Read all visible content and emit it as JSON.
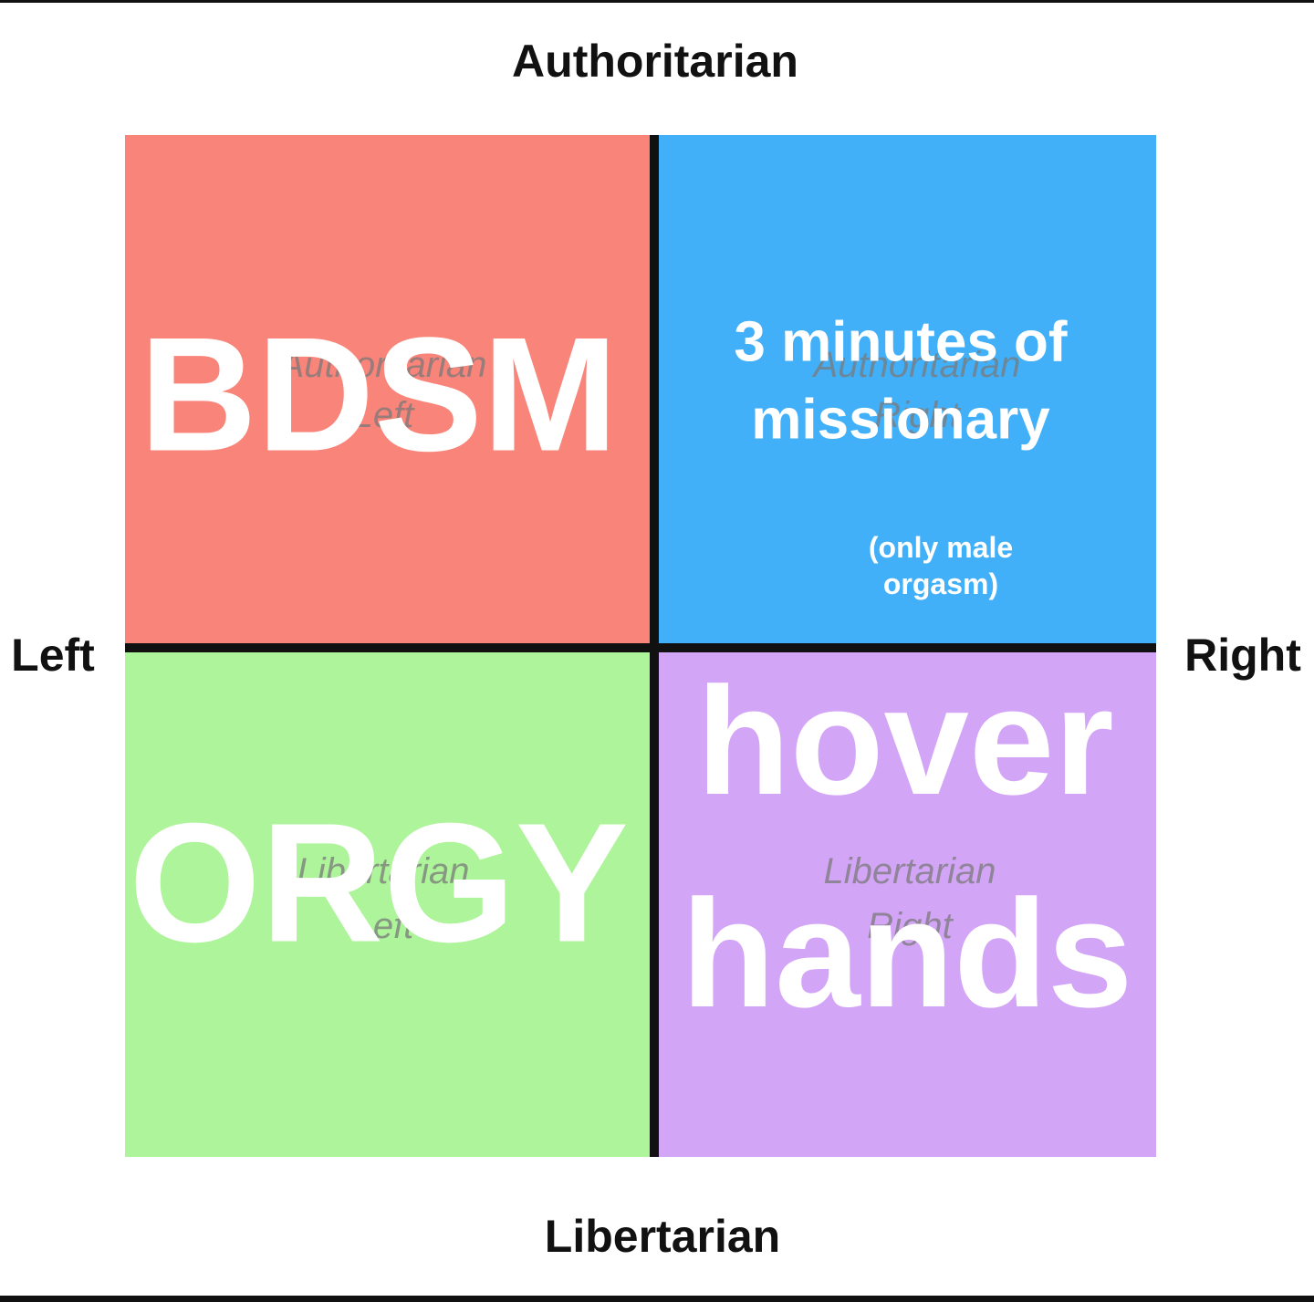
{
  "axes": {
    "top": "Authoritarian",
    "bottom": "Libertarian",
    "left": "Left",
    "right": "Right"
  },
  "quadrants": [
    {
      "underlay": [
        "Authoritarian",
        "Left"
      ],
      "caption": [
        "BDSM"
      ]
    },
    {
      "underlay": [
        "Authoritarian",
        "Right"
      ],
      "caption": [
        "3 minutes of",
        "missionary"
      ],
      "note": [
        "(only male",
        "orgasm)"
      ]
    },
    {
      "underlay": [
        "Libertarian",
        "Left"
      ],
      "caption": [
        "ORGY"
      ]
    },
    {
      "underlay": [
        "Libertarian",
        "Right"
      ],
      "caption": [
        "hover",
        "hands"
      ]
    }
  ]
}
